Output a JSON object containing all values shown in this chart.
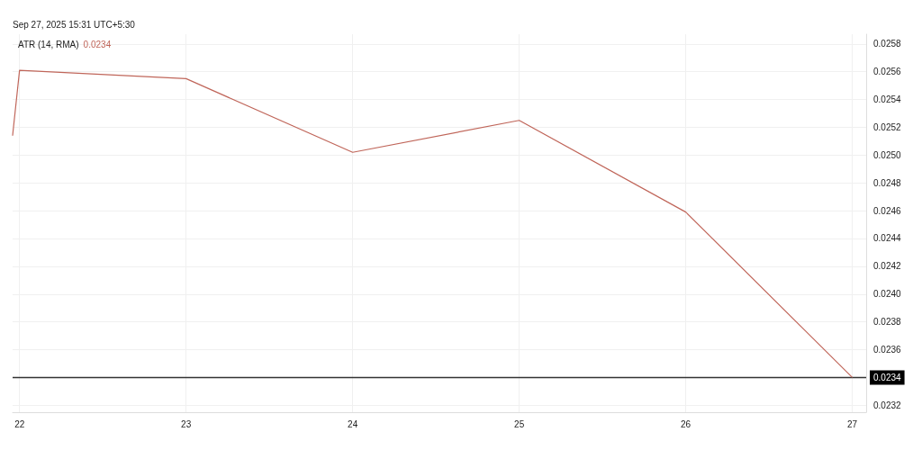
{
  "chart_data": {
    "type": "line",
    "title": "ATR (14, RMA)",
    "annotations": [
      "0.0234",
      "Sep 27, 2025 15:31 UTC+5:30"
    ],
    "x": [
      "2025-09-21T23:00",
      "2025-09-22",
      "2025-09-23",
      "2025-09-24",
      "2025-09-25",
      "2025-09-26",
      "2025-09-27"
    ],
    "series": [
      {
        "color": "#c0665a",
        "values": [
          0.02514,
          0.02561,
          0.02555,
          0.02502,
          0.02525,
          0.02459,
          0.0234
        ]
      }
    ],
    "xlim": [
      "2025-09-21T23:00",
      "2025-09-27T02:00"
    ],
    "xticks": [
      {
        "value": "2025-09-22",
        "label": "22"
      },
      {
        "value": "2025-09-23",
        "label": "23"
      },
      {
        "value": "2025-09-24",
        "label": "24"
      },
      {
        "value": "2025-09-25",
        "label": "25"
      },
      {
        "value": "2025-09-26",
        "label": "26"
      },
      {
        "value": "2025-09-27",
        "label": "27"
      }
    ],
    "ylim": [
      0.02315,
      0.02587
    ],
    "yticks": [
      {
        "value": 0.0232,
        "label": "0.0232"
      },
      {
        "value": 0.0234,
        "label": null
      },
      {
        "value": 0.0236,
        "label": "0.0236"
      },
      {
        "value": 0.0238,
        "label": "0.0238"
      },
      {
        "value": 0.024,
        "label": "0.0240"
      },
      {
        "value": 0.0242,
        "label": "0.0242"
      },
      {
        "value": 0.0244,
        "label": "0.0244"
      },
      {
        "value": 0.0246,
        "label": "0.0246"
      },
      {
        "value": 0.0248,
        "label": "0.0248"
      },
      {
        "value": 0.025,
        "label": "0.0250"
      },
      {
        "value": 0.0252,
        "label": "0.0252"
      },
      {
        "value": 0.0254,
        "label": "0.0254"
      },
      {
        "value": 0.0256,
        "label": "0.0256"
      },
      {
        "value": 0.0258,
        "label": "0.0258"
      }
    ],
    "ref_lines": [
      {
        "axis": "y",
        "value": 0.0234,
        "label": "0.0234",
        "color": "#333333"
      }
    ],
    "grid": true,
    "marker": "none",
    "line_style": "solid"
  }
}
